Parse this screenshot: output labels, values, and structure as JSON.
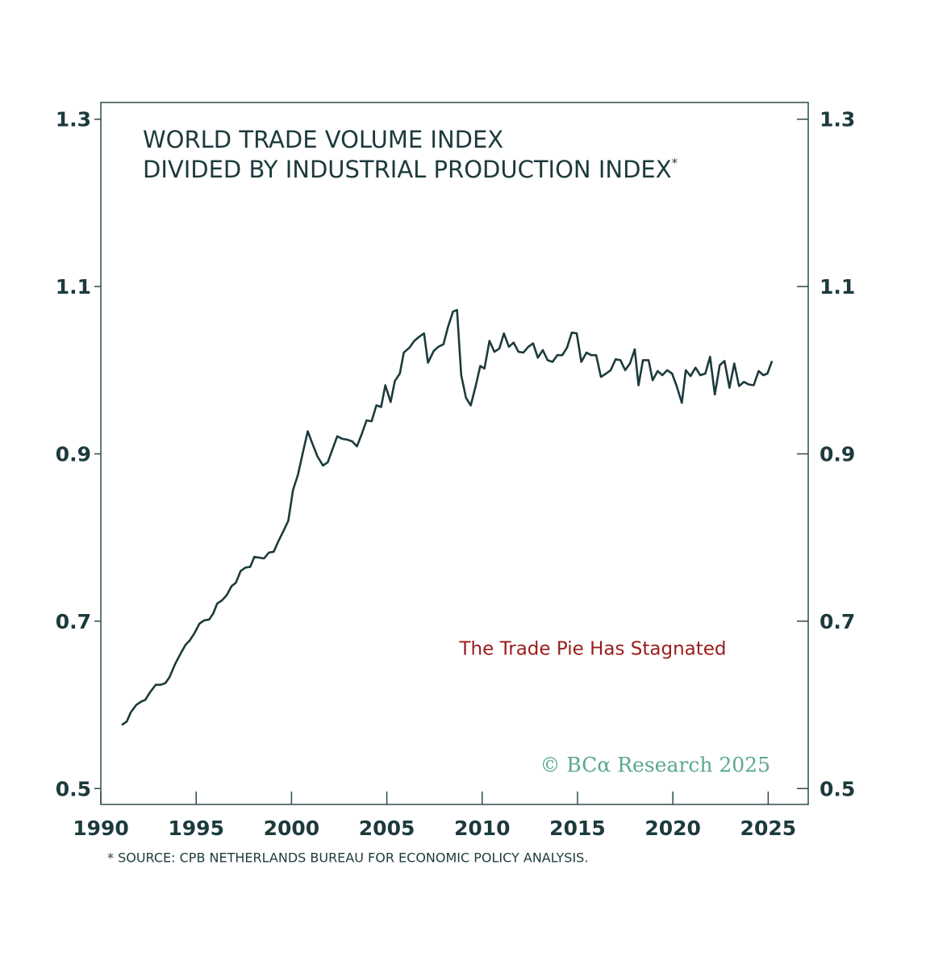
{
  "chart_data": {
    "type": "line",
    "title": [
      "WORLD TRADE VOLUME INDEX",
      "DIVIDED BY INDUSTRIAL PRODUCTION INDEX"
    ],
    "title_mark": "*",
    "annotation": "The Trade Pie Has Stagnated",
    "watermark": "© BCα Research 2025",
    "footnote": "* SOURCE: CPB NETHERLANDS BUREAU FOR ECONOMIC POLICY ANALYSIS.",
    "color": "#1d3a3c",
    "xlim": [
      1990,
      2027.1
    ],
    "xticks": [
      1990,
      1995,
      2000,
      2005,
      2010,
      2015,
      2020,
      2025
    ],
    "ylim": [
      0.481,
      1.32
    ],
    "yticks": [
      0.5,
      0.7,
      0.9,
      1.1,
      1.3
    ],
    "x": [
      1991.1,
      1991.36,
      1991.57,
      1991.86,
      1992.12,
      1992.33,
      1992.58,
      1992.88,
      1993.14,
      1993.39,
      1993.6,
      1993.9,
      1994.2,
      1994.45,
      1994.66,
      1994.92,
      1995.17,
      1995.42,
      1995.68,
      1995.89,
      1996.1,
      1996.36,
      1996.6,
      1996.86,
      1997.08,
      1997.33,
      1997.58,
      1997.84,
      1998.05,
      1998.3,
      1998.56,
      1998.81,
      1999.07,
      1999.32,
      1999.58,
      1999.83,
      2000.08,
      2000.34,
      2000.6,
      2000.85,
      2001.1,
      2001.36,
      2001.65,
      2001.9,
      2002.16,
      2002.4,
      2002.67,
      2002.92,
      2003.18,
      2003.43,
      2003.69,
      2003.94,
      2004.2,
      2004.45,
      2004.7,
      2004.92,
      2005.2,
      2005.42,
      2005.68,
      2005.89,
      2006.19,
      2006.44,
      2006.7,
      2006.95,
      2007.16,
      2007.46,
      2007.7,
      2007.97,
      2008.2,
      2008.47,
      2008.68,
      2008.9,
      2009.15,
      2009.4,
      2009.66,
      2009.9,
      2010.12,
      2010.38,
      2010.64,
      2010.9,
      2011.14,
      2011.4,
      2011.65,
      2011.9,
      2012.16,
      2012.42,
      2012.67,
      2012.92,
      2013.18,
      2013.43,
      2013.69,
      2013.94,
      2014.2,
      2014.45,
      2014.7,
      2014.96,
      2015.2,
      2015.47,
      2015.72,
      2015.98,
      2016.23,
      2016.5,
      2016.74,
      2017.0,
      2017.25,
      2017.5,
      2017.75,
      2018.0,
      2018.2,
      2018.43,
      2018.73,
      2018.94,
      2019.2,
      2019.45,
      2019.7,
      2019.96,
      2020.2,
      2020.47,
      2020.68,
      2020.93,
      2021.19,
      2021.44,
      2021.7,
      2021.95,
      2022.2,
      2022.46,
      2022.71,
      2022.97,
      2023.22,
      2023.47,
      2023.73,
      2023.98,
      2024.24,
      2024.5,
      2024.75,
      2024.96,
      2025.2
    ],
    "values": [
      0.576,
      0.58,
      0.591,
      0.6,
      0.604,
      0.606,
      0.615,
      0.624,
      0.624,
      0.626,
      0.633,
      0.649,
      0.662,
      0.672,
      0.677,
      0.686,
      0.697,
      0.701,
      0.702,
      0.709,
      0.721,
      0.725,
      0.731,
      0.742,
      0.746,
      0.76,
      0.764,
      0.765,
      0.777,
      0.776,
      0.775,
      0.782,
      0.783,
      0.796,
      0.808,
      0.82,
      0.857,
      0.875,
      0.902,
      0.927,
      0.912,
      0.897,
      0.886,
      0.89,
      0.906,
      0.921,
      0.918,
      0.917,
      0.915,
      0.909,
      0.924,
      0.94,
      0.939,
      0.958,
      0.956,
      0.982,
      0.962,
      0.987,
      0.996,
      1.021,
      1.027,
      1.035,
      1.04,
      1.044,
      1.009,
      1.023,
      1.028,
      1.031,
      1.051,
      1.07,
      1.072,
      0.994,
      0.967,
      0.958,
      0.981,
      1.005,
      1.002,
      1.035,
      1.022,
      1.026,
      1.044,
      1.028,
      1.033,
      1.022,
      1.021,
      1.028,
      1.032,
      1.015,
      1.024,
      1.012,
      1.01,
      1.018,
      1.018,
      1.027,
      1.045,
      1.044,
      1.01,
      1.021,
      1.018,
      1.018,
      0.992,
      0.996,
      1.0,
      1.013,
      1.012,
      1.0,
      1.008,
      1.025,
      0.982,
      1.012,
      1.012,
      0.988,
      0.999,
      0.994,
      1.0,
      0.996,
      0.981,
      0.961,
      1.0,
      0.993,
      1.003,
      0.994,
      0.996,
      1.016,
      0.971,
      1.006,
      1.011,
      0.979,
      1.008,
      0.981,
      0.986,
      0.983,
      0.982,
      0.999,
      0.994,
      0.996,
      1.011
    ]
  }
}
